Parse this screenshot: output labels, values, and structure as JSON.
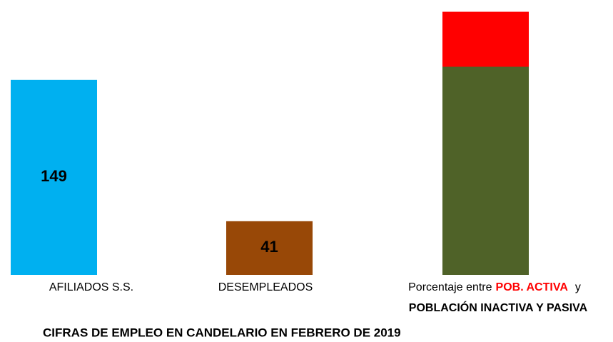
{
  "chart_data": {
    "type": "bar",
    "title": "CIFRAS DE EMPLEO EN CANDELARIO EN FEBRERO DE 2019",
    "categories": [
      "AFILIADOS S.S.",
      "DESEMPLEADOS",
      [
        "Porcentaje entre",
        "POB. ACTIVA",
        "y",
        "POBLACIÓN INACTIVA Y PASIVA"
      ]
    ],
    "values": [
      149,
      41,
      null
    ],
    "colors": [
      "#00b0f0",
      "#984807",
      null
    ],
    "stack": {
      "values": [
        159,
        42
      ],
      "colors": [
        "#4f6228",
        "#ff0000"
      ]
    },
    "ylim": [
      0,
      210
    ]
  }
}
